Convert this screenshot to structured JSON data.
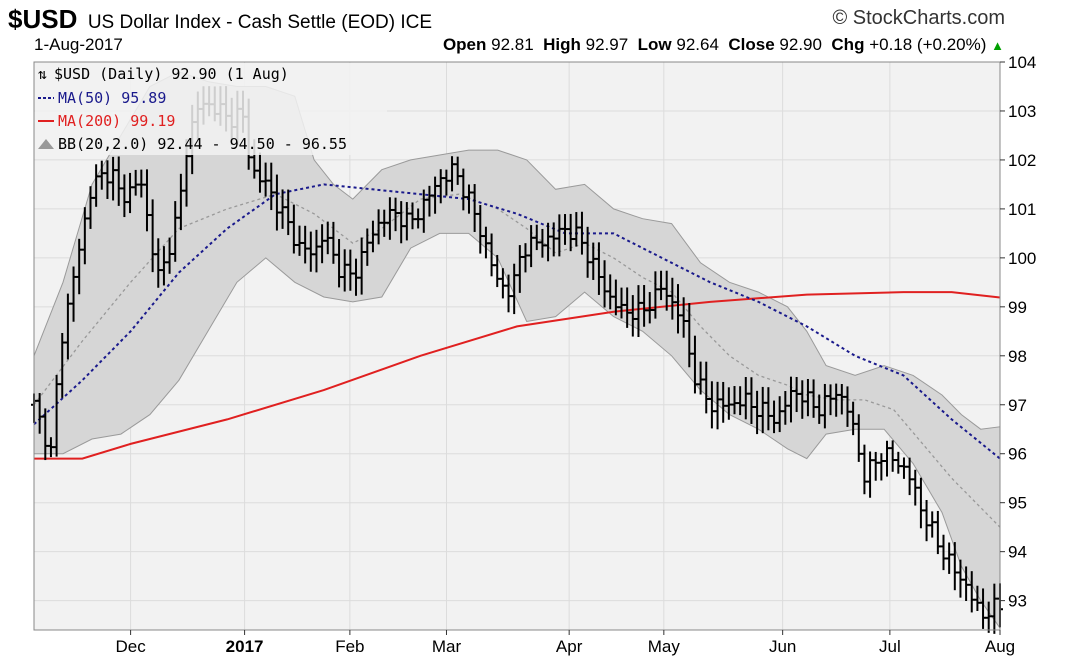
{
  "header": {
    "symbol": "$USD",
    "description": "US Dollar Index - Cash Settle (EOD)",
    "exchange": "ICE",
    "copyright": "© StockCharts.com",
    "date": "1-Aug-2017",
    "open_label": "Open",
    "open": "92.81",
    "high_label": "High",
    "high": "92.97",
    "low_label": "Low",
    "low": "92.64",
    "close_label": "Close",
    "close": "92.90",
    "chg_label": "Chg",
    "chg": "+0.18 (+0.20%)",
    "chg_arrow": "▲"
  },
  "legend": {
    "main": "$USD (Daily) 92.90 (1 Aug)",
    "ma50": "MA(50) 95.89",
    "ma200": "MA(200) 99.19",
    "bb": "BB(20,2.0) 92.44 - 94.50 - 96.55"
  },
  "colors": {
    "bar": "#000000",
    "ma50": "#1a1a8c",
    "ma200": "#e02020",
    "bb_fill": "#d6d6d6",
    "bb_mid": "#999999",
    "plot_bg": "#f2f2f2",
    "grid": "#dcdcdc"
  },
  "chart_data": {
    "type": "ohlc",
    "symbol": "$USD",
    "frequency": "daily",
    "ylim": [
      92.4,
      104
    ],
    "y_ticks": [
      93,
      94,
      95,
      96,
      97,
      98,
      99,
      100,
      101,
      102,
      103,
      104
    ],
    "x_ticks": [
      {
        "label": "Dec",
        "x": 0.1,
        "bold": false
      },
      {
        "label": "2017",
        "x": 0.218,
        "bold": true
      },
      {
        "label": "Feb",
        "x": 0.327,
        "bold": false
      },
      {
        "label": "Mar",
        "x": 0.427,
        "bold": false
      },
      {
        "label": "Apr",
        "x": 0.554,
        "bold": false
      },
      {
        "label": "May",
        "x": 0.652,
        "bold": false
      },
      {
        "label": "Jun",
        "x": 0.775,
        "bold": false
      },
      {
        "label": "Jul",
        "x": 0.886,
        "bold": false
      },
      {
        "label": "Aug",
        "x": 1.0,
        "bold": false
      }
    ],
    "price_path": [
      [
        0,
        97
      ],
      [
        0.02,
        95.9
      ],
      [
        0.025,
        98
      ],
      [
        0.04,
        99.5
      ],
      [
        0.06,
        101.5
      ],
      [
        0.08,
        101.8
      ],
      [
        0.09,
        101.2
      ],
      [
        0.11,
        101.6
      ],
      [
        0.12,
        100.5
      ],
      [
        0.13,
        99.5
      ],
      [
        0.15,
        101
      ],
      [
        0.16,
        102.5
      ],
      [
        0.17,
        103.1
      ],
      [
        0.19,
        103.1
      ],
      [
        0.2,
        102.8
      ],
      [
        0.215,
        103
      ],
      [
        0.225,
        101.8
      ],
      [
        0.24,
        101.5
      ],
      [
        0.26,
        100.8
      ],
      [
        0.275,
        100.2
      ],
      [
        0.29,
        100.1
      ],
      [
        0.3,
        100.5
      ],
      [
        0.315,
        99.8
      ],
      [
        0.33,
        99.6
      ],
      [
        0.345,
        100.3
      ],
      [
        0.36,
        100.8
      ],
      [
        0.375,
        100.9
      ],
      [
        0.39,
        100.7
      ],
      [
        0.4,
        101
      ],
      [
        0.42,
        101.6
      ],
      [
        0.435,
        101.8
      ],
      [
        0.45,
        101.2
      ],
      [
        0.465,
        100.4
      ],
      [
        0.48,
        99.5
      ],
      [
        0.495,
        99.3
      ],
      [
        0.505,
        100.2
      ],
      [
        0.52,
        100.3
      ],
      [
        0.535,
        100.4
      ],
      [
        0.55,
        100.6
      ],
      [
        0.565,
        100.4
      ],
      [
        0.58,
        99.8
      ],
      [
        0.595,
        99.2
      ],
      [
        0.61,
        98.9
      ],
      [
        0.63,
        98.9
      ],
      [
        0.65,
        99.4
      ],
      [
        0.67,
        98.8
      ],
      [
        0.685,
        97.5
      ],
      [
        0.7,
        97
      ],
      [
        0.72,
        97
      ],
      [
        0.735,
        97.1
      ],
      [
        0.75,
        96.9
      ],
      [
        0.77,
        96.7
      ],
      [
        0.785,
        97.3
      ],
      [
        0.8,
        97.1
      ],
      [
        0.815,
        96.9
      ],
      [
        0.83,
        97.3
      ],
      [
        0.845,
        96.8
      ],
      [
        0.86,
        95.5
      ],
      [
        0.875,
        96
      ],
      [
        0.89,
        95.9
      ],
      [
        0.905,
        95.6
      ],
      [
        0.92,
        94.8
      ],
      [
        0.935,
        94.2
      ],
      [
        0.95,
        93.7
      ],
      [
        0.965,
        93.3
      ],
      [
        0.98,
        92.7
      ],
      [
        1.0,
        92.9
      ]
    ],
    "ma50_path": [
      [
        0,
        96.6
      ],
      [
        0.05,
        97.5
      ],
      [
        0.1,
        98.5
      ],
      [
        0.15,
        99.7
      ],
      [
        0.2,
        100.6
      ],
      [
        0.25,
        101.3
      ],
      [
        0.3,
        101.5
      ],
      [
        0.35,
        101.4
      ],
      [
        0.4,
        101.3
      ],
      [
        0.45,
        101.2
      ],
      [
        0.5,
        100.9
      ],
      [
        0.55,
        100.5
      ],
      [
        0.6,
        100.5
      ],
      [
        0.65,
        100
      ],
      [
        0.7,
        99.5
      ],
      [
        0.75,
        99.1
      ],
      [
        0.8,
        98.6
      ],
      [
        0.85,
        98
      ],
      [
        0.9,
        97.6
      ],
      [
        0.95,
        96.7
      ],
      [
        1.0,
        95.9
      ]
    ],
    "ma200_path": [
      [
        0,
        95.9
      ],
      [
        0.05,
        95.9
      ],
      [
        0.1,
        96.2
      ],
      [
        0.2,
        96.7
      ],
      [
        0.3,
        97.3
      ],
      [
        0.4,
        98
      ],
      [
        0.5,
        98.6
      ],
      [
        0.6,
        98.9
      ],
      [
        0.7,
        99.1
      ],
      [
        0.8,
        99.25
      ],
      [
        0.9,
        99.3
      ],
      [
        0.95,
        99.3
      ],
      [
        1.0,
        99.19
      ]
    ],
    "bb_upper": [
      [
        0,
        98
      ],
      [
        0.03,
        99.5
      ],
      [
        0.06,
        101.5
      ],
      [
        0.09,
        102.5
      ],
      [
        0.12,
        103.5
      ],
      [
        0.15,
        103.8
      ],
      [
        0.18,
        103.6
      ],
      [
        0.21,
        103.5
      ],
      [
        0.24,
        103.5
      ],
      [
        0.27,
        103.3
      ],
      [
        0.29,
        102
      ],
      [
        0.31,
        101.5
      ],
      [
        0.33,
        101.2
      ],
      [
        0.36,
        101.8
      ],
      [
        0.39,
        102
      ],
      [
        0.42,
        102.1
      ],
      [
        0.45,
        102.2
      ],
      [
        0.48,
        102.2
      ],
      [
        0.51,
        102
      ],
      [
        0.54,
        101.4
      ],
      [
        0.57,
        101.5
      ],
      [
        0.6,
        101
      ],
      [
        0.63,
        100.8
      ],
      [
        0.66,
        100.7
      ],
      [
        0.69,
        99.9
      ],
      [
        0.72,
        99.5
      ],
      [
        0.75,
        99.3
      ],
      [
        0.78,
        99
      ],
      [
        0.8,
        98.5
      ],
      [
        0.82,
        97.8
      ],
      [
        0.85,
        97.6
      ],
      [
        0.88,
        97.8
      ],
      [
        0.91,
        97.6
      ],
      [
        0.94,
        97.2
      ],
      [
        0.96,
        96.8
      ],
      [
        0.98,
        96.5
      ],
      [
        1.0,
        96.55
      ]
    ],
    "bb_lower": [
      [
        0,
        96
      ],
      [
        0.03,
        96
      ],
      [
        0.06,
        96.3
      ],
      [
        0.09,
        96.4
      ],
      [
        0.12,
        96.8
      ],
      [
        0.15,
        97.5
      ],
      [
        0.18,
        98.5
      ],
      [
        0.21,
        99.5
      ],
      [
        0.24,
        100
      ],
      [
        0.27,
        99.5
      ],
      [
        0.3,
        99.2
      ],
      [
        0.33,
        99.1
      ],
      [
        0.36,
        99.2
      ],
      [
        0.39,
        100.2
      ],
      [
        0.42,
        100.5
      ],
      [
        0.45,
        100.5
      ],
      [
        0.48,
        100
      ],
      [
        0.51,
        98.7
      ],
      [
        0.54,
        98.8
      ],
      [
        0.57,
        99.3
      ],
      [
        0.6,
        98.8
      ],
      [
        0.63,
        98.5
      ],
      [
        0.66,
        98
      ],
      [
        0.69,
        97.3
      ],
      [
        0.72,
        96.8
      ],
      [
        0.75,
        96.5
      ],
      [
        0.78,
        96.1
      ],
      [
        0.8,
        95.9
      ],
      [
        0.82,
        96.4
      ],
      [
        0.85,
        96.5
      ],
      [
        0.88,
        96.5
      ],
      [
        0.91,
        95.8
      ],
      [
        0.94,
        94.8
      ],
      [
        0.96,
        93.7
      ],
      [
        0.98,
        93
      ],
      [
        1.0,
        92.44
      ]
    ],
    "bb_mid_path": [
      [
        0,
        97
      ],
      [
        0.05,
        98.3
      ],
      [
        0.1,
        99.5
      ],
      [
        0.15,
        100.6
      ],
      [
        0.2,
        101
      ],
      [
        0.25,
        101.3
      ],
      [
        0.29,
        100.9
      ],
      [
        0.33,
        100.3
      ],
      [
        0.36,
        100.6
      ],
      [
        0.4,
        101.2
      ],
      [
        0.44,
        101.3
      ],
      [
        0.48,
        101
      ],
      [
        0.51,
        100.6
      ],
      [
        0.54,
        100.1
      ],
      [
        0.57,
        100.3
      ],
      [
        0.6,
        100
      ],
      [
        0.63,
        99.6
      ],
      [
        0.66,
        99.3
      ],
      [
        0.69,
        98.6
      ],
      [
        0.72,
        98
      ],
      [
        0.75,
        97.6
      ],
      [
        0.78,
        97.4
      ],
      [
        0.8,
        97.2
      ],
      [
        0.83,
        97.1
      ],
      [
        0.86,
        97.1
      ],
      [
        0.89,
        96.9
      ],
      [
        0.92,
        96.2
      ],
      [
        0.95,
        95.5
      ],
      [
        0.98,
        94.9
      ],
      [
        1.0,
        94.5
      ]
    ]
  }
}
